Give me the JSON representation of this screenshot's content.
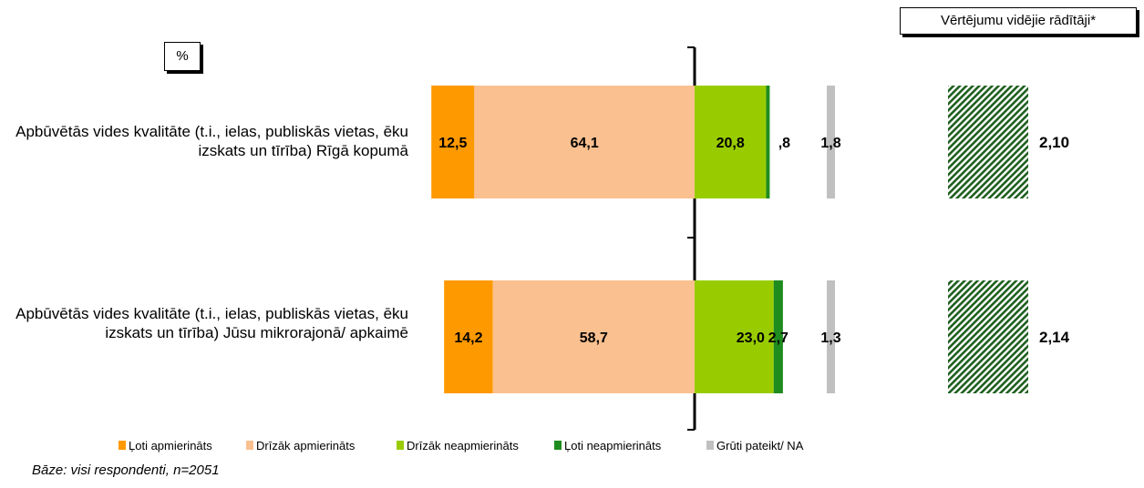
{
  "unit_label": "%",
  "average_header": "Vērtējumu vidējie rādītāji*",
  "base_note": "Bāze: visi respondenti, n=2051",
  "colors": {
    "very_satisfied": "#ff9900",
    "rather_satisfied": "#fac090",
    "rather_unsatisfied": "#99cc00",
    "very_unsatisfied": "#1e8c1e",
    "hard_to_say": "#c0c0c0",
    "hatch": "#1f5f1f"
  },
  "chart_data": {
    "type": "bar",
    "stacked": true,
    "orientation": "horizontal",
    "categories": [
      "Apbūvētās vides kvalitāte (t.i., ielas, publiskās vietas, ēku izskats un tīrība) Rīgā kopumā",
      "Apbūvētās vides kvalitāte (t.i., ielas, publiskās vietas, ēku izskats un tīrība) Jūsu mikrorajonā/ apkaimē"
    ],
    "series": [
      {
        "name": "Ļoti apmierināts",
        "values": [
          12.5,
          14.2
        ],
        "labels": [
          "12,5",
          "14,2"
        ]
      },
      {
        "name": "Drīzāk apmierināts",
        "values": [
          64.1,
          58.7
        ],
        "labels": [
          "64,1",
          "58,7"
        ]
      },
      {
        "name": "Drīzāk neapmierināts",
        "values": [
          20.8,
          23.0
        ],
        "labels": [
          "20,8",
          "23,0"
        ]
      },
      {
        "name": "Ļoti neapmierināts",
        "values": [
          0.8,
          2.7
        ],
        "labels": [
          ",8",
          "2,7"
        ]
      },
      {
        "name": "Grūti pateikt/ NA",
        "values": [
          1.8,
          1.3
        ],
        "labels": [
          "1,8",
          "1,3"
        ]
      }
    ],
    "averages": [
      2.1,
      2.14
    ],
    "average_labels": [
      "2,10",
      "2,14"
    ],
    "legend_position": "bottom",
    "grid": false
  }
}
